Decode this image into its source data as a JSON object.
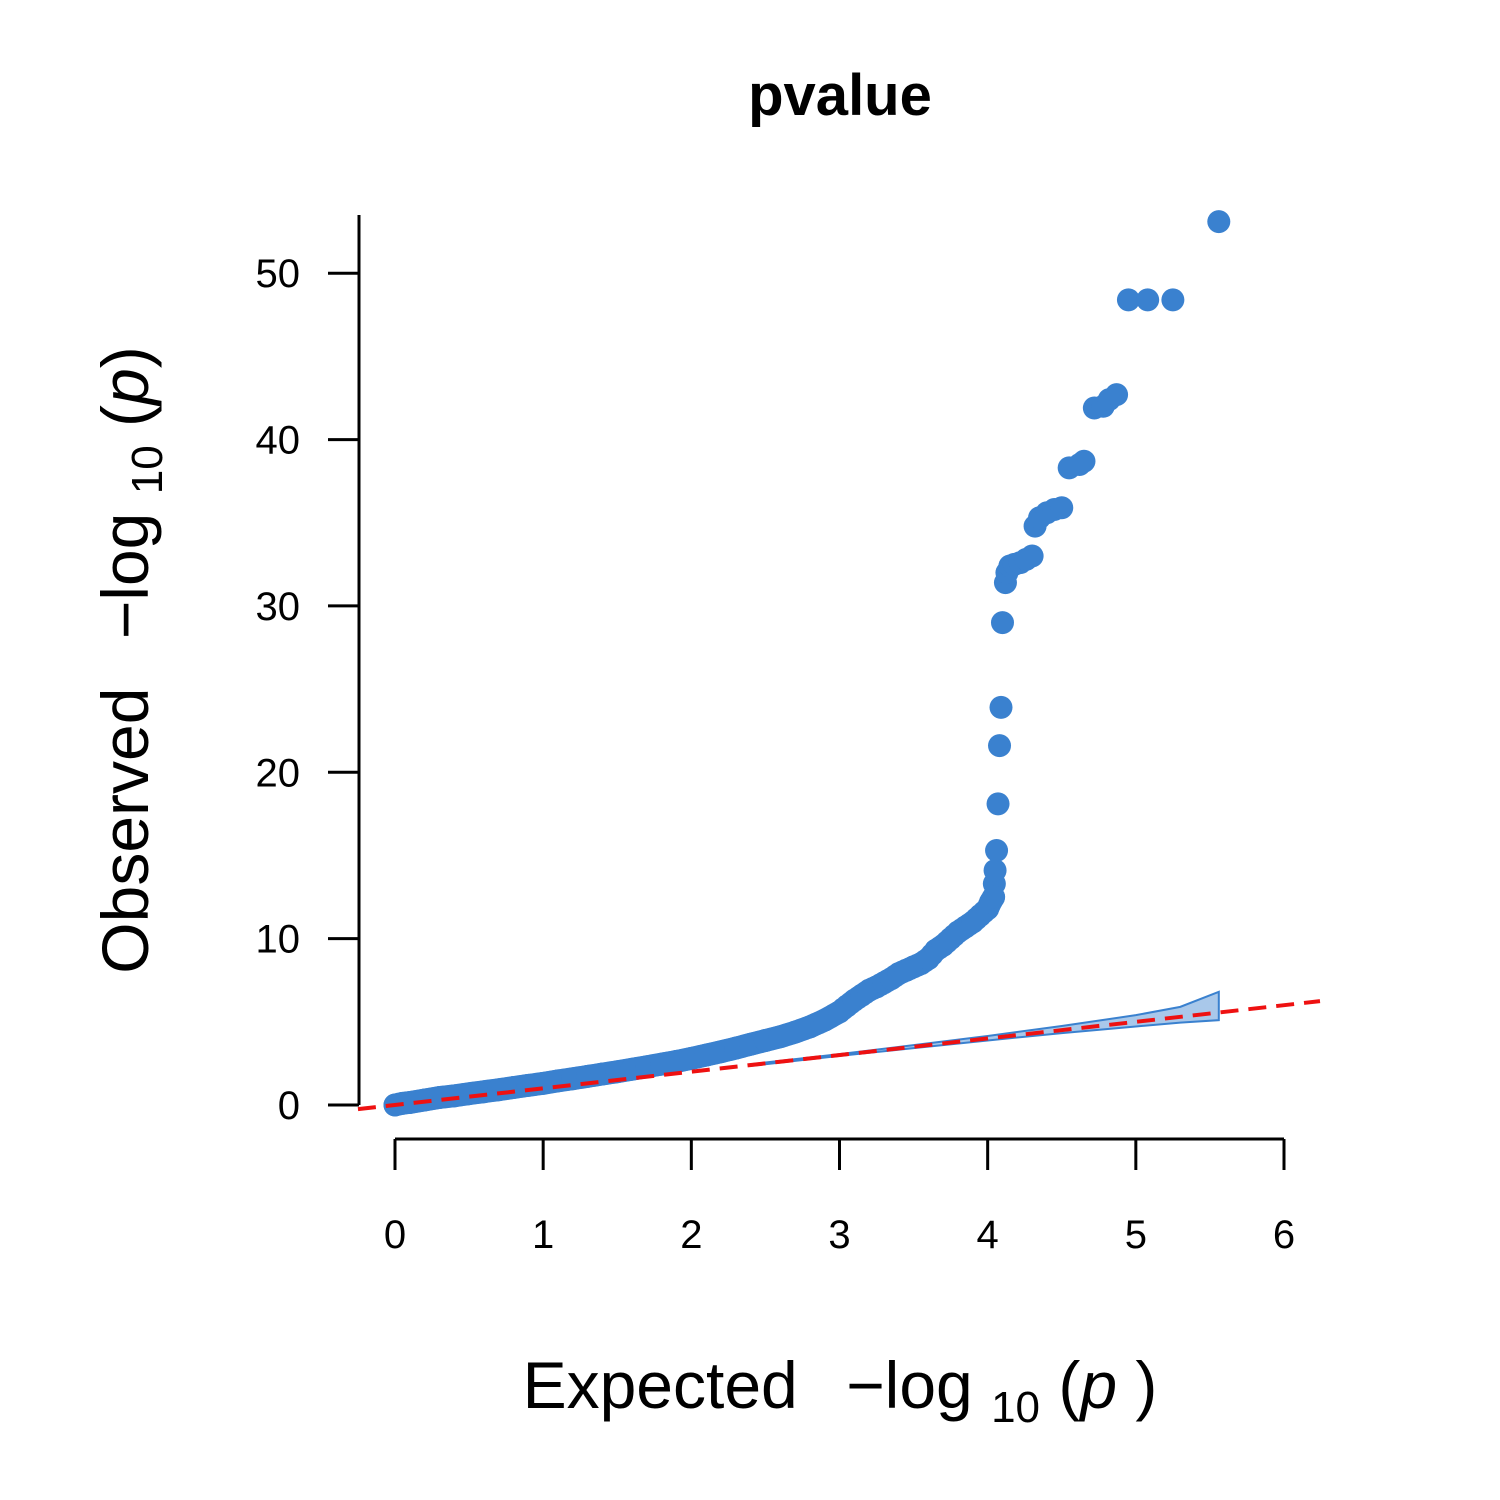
{
  "chart_data": {
    "type": "scatter",
    "title": "pvalue",
    "xlabel": "Expected -log10(p)",
    "ylabel": "Observed -log10(p)",
    "xlabel_parts": {
      "prefix": "Expected",
      "fn": "log",
      "sub": "10",
      "var": "p"
    },
    "ylabel_parts": {
      "prefix": "Observed",
      "fn": "log",
      "sub": "10",
      "var": "p"
    },
    "xlim": [
      0,
      6
    ],
    "ylim": [
      0,
      53.5
    ],
    "x_ticks": [
      "0",
      "1",
      "2",
      "3",
      "4",
      "5",
      "6"
    ],
    "y_ticks": [
      "0",
      "10",
      "20",
      "30",
      "40",
      "50"
    ],
    "grid": false,
    "colors": {
      "points": "#3a81cf",
      "reference_line": "#ee1111",
      "confidence_band_fill": "#a9c8ea",
      "confidence_band_edge": "#3a81cf"
    },
    "reference_line": {
      "style": "dashed",
      "slope": 1,
      "intercept": 0
    },
    "confidence_band": {
      "x": [
        2.4,
        3.0,
        3.5,
        4.0,
        4.5,
        5.0,
        5.3,
        5.56
      ],
      "upper": [
        2.45,
        3.06,
        3.6,
        4.15,
        4.75,
        5.4,
        5.9,
        6.8
      ],
      "lower": [
        2.35,
        2.95,
        3.42,
        3.88,
        4.32,
        4.72,
        4.95,
        5.1
      ]
    },
    "points": {
      "x": [
        0.0,
        0.05,
        0.1,
        0.2,
        0.3,
        0.4,
        0.5,
        0.6,
        0.7,
        0.8,
        0.9,
        1.0,
        1.1,
        1.2,
        1.3,
        1.4,
        1.5,
        1.6,
        1.7,
        1.8,
        1.9,
        2.0,
        2.1,
        2.2,
        2.3,
        2.4,
        2.5,
        2.6,
        2.7,
        2.8,
        2.9,
        3.0,
        3.05,
        3.1,
        3.15,
        3.2,
        3.25,
        3.3,
        3.35,
        3.4,
        3.45,
        3.5,
        3.55,
        3.6,
        3.65,
        3.7,
        3.75,
        3.8,
        3.85,
        3.9,
        3.95,
        4.0,
        4.02,
        4.04,
        4.05,
        4.06,
        4.07,
        4.08,
        4.09,
        4.1,
        4.12,
        4.13,
        4.15,
        4.18,
        4.22,
        4.26,
        4.3,
        4.32,
        4.35,
        4.4,
        4.45,
        4.5,
        4.55,
        4.62,
        4.65,
        4.72,
        4.78,
        4.82,
        4.87,
        4.95,
        5.08,
        5.25,
        5.56
      ],
      "y": [
        0.0,
        0.1,
        0.15,
        0.3,
        0.45,
        0.55,
        0.68,
        0.8,
        0.92,
        1.05,
        1.18,
        1.3,
        1.45,
        1.58,
        1.72,
        1.86,
        2.0,
        2.15,
        2.3,
        2.46,
        2.62,
        2.8,
        3.0,
        3.2,
        3.42,
        3.65,
        3.88,
        4.1,
        4.38,
        4.7,
        5.1,
        5.6,
        5.95,
        6.3,
        6.6,
        6.9,
        7.1,
        7.35,
        7.6,
        7.9,
        8.1,
        8.3,
        8.5,
        8.8,
        9.3,
        9.6,
        10.0,
        10.4,
        10.7,
        11.0,
        11.4,
        11.8,
        12.2,
        12.5,
        14.1,
        15.3,
        18.1,
        21.6,
        23.9,
        29.0,
        31.4,
        32.0,
        32.4,
        32.5,
        32.6,
        32.8,
        33.0,
        34.8,
        35.3,
        35.6,
        35.8,
        35.9,
        38.3,
        38.5,
        38.7,
        41.9,
        42.0,
        42.4,
        42.7,
        48.4,
        48.4,
        48.4,
        53.1
      ]
    }
  }
}
